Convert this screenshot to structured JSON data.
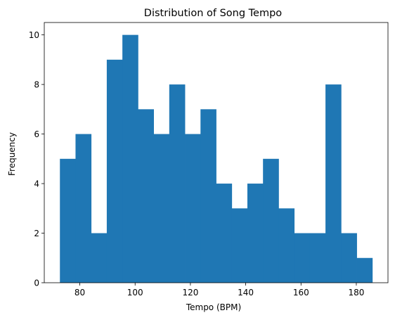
{
  "chart_data": {
    "type": "bar",
    "title": "Distribution of Song Tempo",
    "xlabel": "Tempo (BPM)",
    "ylabel": "Frequency",
    "bin_edges": [
      72.8,
      78.45,
      84.1,
      89.75,
      95.4,
      101.05,
      106.7,
      112.35,
      118.0,
      123.65,
      129.3,
      134.95,
      140.6,
      146.25,
      151.9,
      157.55,
      163.2,
      168.85,
      174.5,
      180.15,
      185.8
    ],
    "values": [
      5,
      6,
      2,
      9,
      10,
      7,
      6,
      8,
      6,
      7,
      4,
      3,
      4,
      5,
      3,
      2,
      2,
      8,
      2,
      1
    ],
    "xlim": [
      67.15,
      191.45
    ],
    "ylim": [
      0,
      10.5
    ],
    "xticks": [
      80,
      100,
      120,
      140,
      160,
      180
    ],
    "yticks": [
      0,
      2,
      4,
      6,
      8,
      10
    ],
    "grid": false,
    "bar_color": "#1f77b4"
  }
}
